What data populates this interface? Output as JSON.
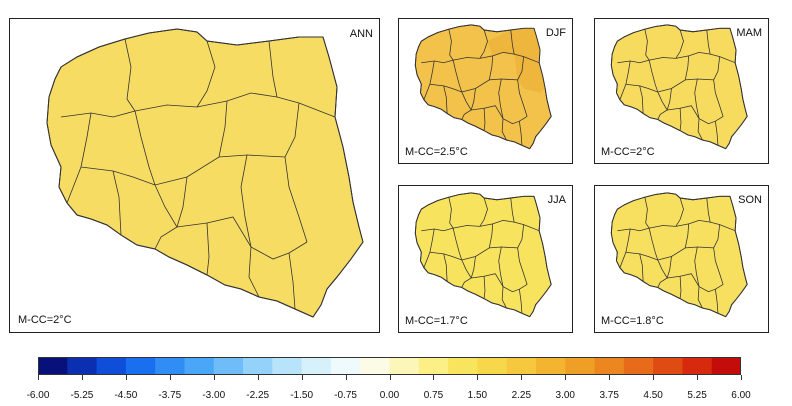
{
  "panels": [
    {
      "id": "ann",
      "season": "ANN",
      "label": "M-CC=2°C",
      "fill": "#f7dc63"
    },
    {
      "id": "djf",
      "season": "DJF",
      "label": "M-CC=2.5°C",
      "fill": "#f3c24a",
      "fill_alt": "#eeb63c"
    },
    {
      "id": "mam",
      "season": "MAM",
      "label": "M-CC=2°C",
      "fill": "#f6db5e"
    },
    {
      "id": "jja",
      "season": "JJA",
      "label": "M-CC=1.7°C",
      "fill": "#f8e35e"
    },
    {
      "id": "son",
      "season": "SON",
      "label": "M-CC=1.8°C",
      "fill": "#f7df5f"
    }
  ],
  "colorbar": {
    "ticks": [
      "-6.00",
      "-5.25",
      "-4.50",
      "-3.75",
      "-3.00",
      "-2.25",
      "-1.50",
      "-0.75",
      "0.00",
      "0.75",
      "1.50",
      "2.25",
      "3.00",
      "3.75",
      "4.50",
      "5.25",
      "6.00"
    ],
    "colors": [
      "#08107a",
      "#0a2fb0",
      "#0e4ed8",
      "#1a6ff0",
      "#2f8df5",
      "#4aa6f7",
      "#6ebdf8",
      "#94d2fa",
      "#b8e4fb",
      "#d6f1fb",
      "#eefafb",
      "#fbfbe6",
      "#fcf6b8",
      "#fbef85",
      "#f9e45d",
      "#f8d84b",
      "#f6c83d",
      "#f3b42f",
      "#f09f26",
      "#ec871f",
      "#e76b18",
      "#e04b13",
      "#d6290e",
      "#c40d0a"
    ]
  }
}
